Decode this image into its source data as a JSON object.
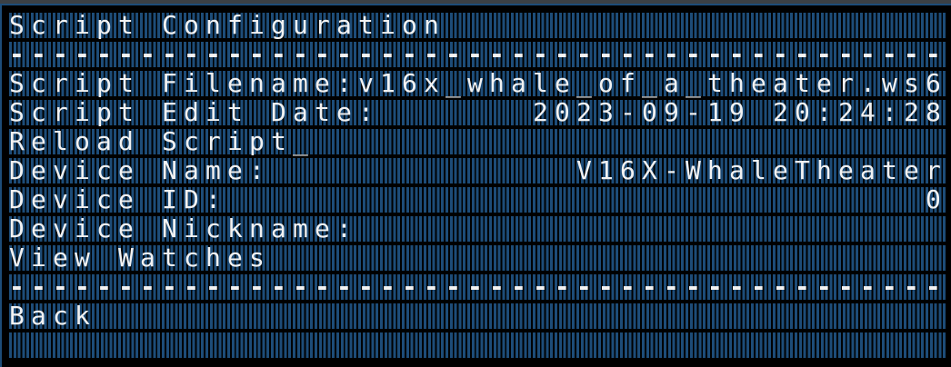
{
  "title": "Script Configuration",
  "separator": "-------------------------------------------",
  "fields": {
    "filename_label": "Script Filename:",
    "filename_value": "v16x_whale_of_a_theater.ws6",
    "edit_date_label": "Script Edit Date:",
    "edit_date_value": "2023-09-19 20:24:28",
    "reload_label": "Reload Script_",
    "device_name_label": "Device Name:",
    "device_name_value": "V16X-WhaleTheater",
    "device_id_label": "Device ID:",
    "device_id_value": "0",
    "device_nickname_label": "Device Nickname:",
    "device_nickname_value": ""
  },
  "view_watches_label": "View Watches",
  "back_label": "Back",
  "colors": {
    "pixel_on": "#f2f2f2",
    "pixel_off": "#1d4c78",
    "background": "#000000"
  }
}
